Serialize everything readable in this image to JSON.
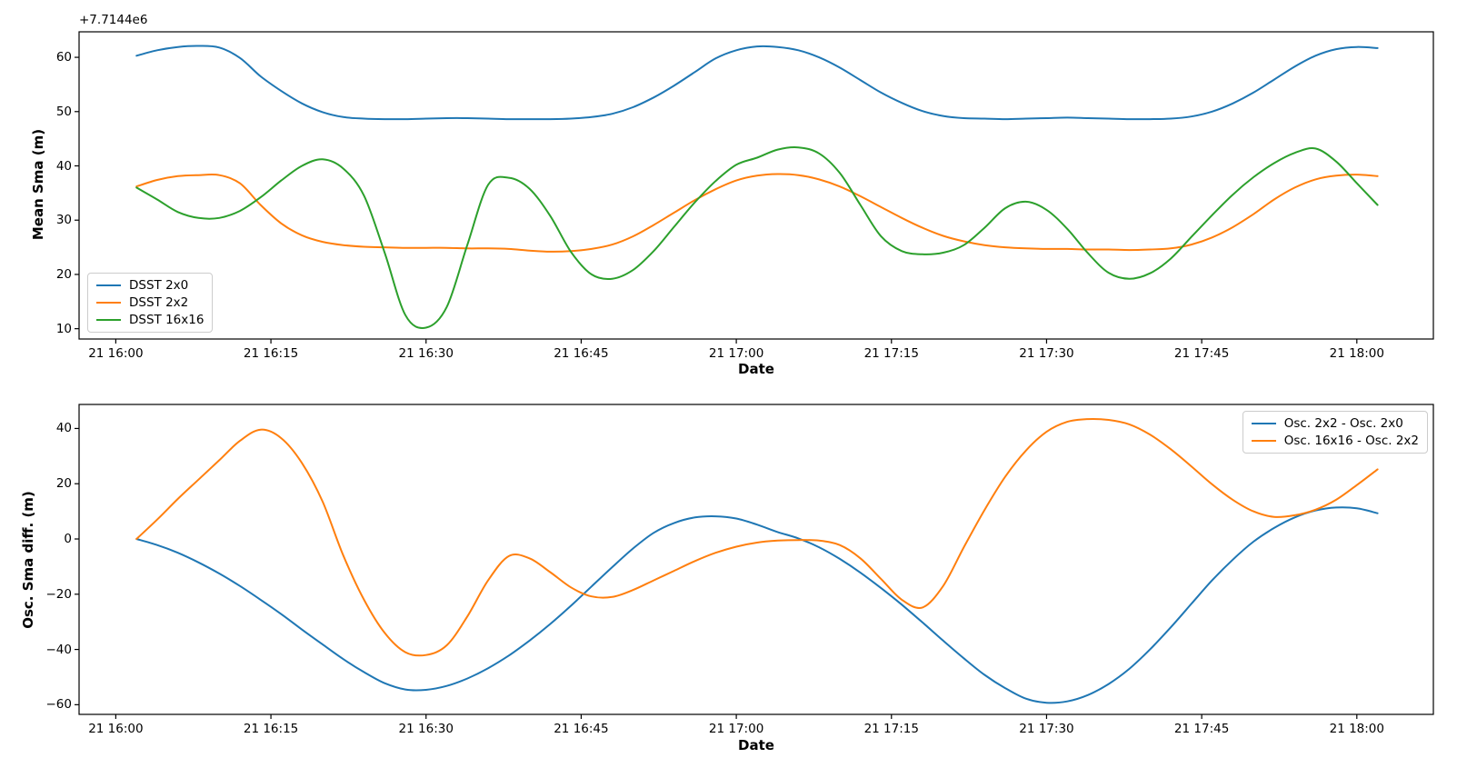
{
  "figure": {
    "background": "#ffffff",
    "text_color": "#000000"
  },
  "chart_data": [
    {
      "type": "line",
      "title": "",
      "xlabel": "Date",
      "ylabel": "Mean Sma (m)",
      "y_offset_text": "+7.7144e6",
      "legend_position": "lower left",
      "grid": false,
      "x_tick_labels": [
        "21 16:00",
        "21 16:15",
        "21 16:30",
        "21 16:45",
        "21 17:00",
        "21 17:15",
        "21 17:30",
        "21 17:45",
        "21 18:00"
      ],
      "x_tick_minutes": [
        0,
        15,
        30,
        45,
        60,
        75,
        90,
        105,
        120
      ],
      "xlim_minutes": [
        -3.55,
        127.4
      ],
      "ylim": [
        8.1,
        64.7
      ],
      "y_ticks": [
        10,
        20,
        30,
        40,
        50,
        60
      ],
      "y_tick_labels": [
        "10",
        "20",
        "30",
        "40",
        "50",
        "60"
      ],
      "x_start_min": 2,
      "x_step_min": 2,
      "series": [
        {
          "name": "DSST 2x0",
          "color": "#1f77b4",
          "values": [
            60.3,
            61.3,
            61.9,
            62.1,
            61.8,
            59.9,
            56.5,
            53.8,
            51.5,
            49.9,
            49.0,
            48.7,
            48.6,
            48.6,
            48.7,
            48.8,
            48.8,
            48.7,
            48.6,
            48.6,
            48.6,
            48.7,
            49.0,
            49.6,
            50.8,
            52.6,
            54.8,
            57.3,
            59.8,
            61.3,
            62.0,
            61.9,
            61.3,
            60.0,
            58.1,
            55.8,
            53.5,
            51.6,
            50.1,
            49.2,
            48.8,
            48.7,
            48.6,
            48.7,
            48.8,
            48.9,
            48.8,
            48.7,
            48.6,
            48.6,
            48.7,
            49.1,
            50.0,
            51.5,
            53.5,
            55.9,
            58.3,
            60.3,
            61.5,
            61.9,
            61.7
          ]
        },
        {
          "name": "DSST 2x2",
          "color": "#ff7f0e",
          "values": [
            36.2,
            37.4,
            38.1,
            38.3,
            38.3,
            36.8,
            32.8,
            29.4,
            27.2,
            26.0,
            25.4,
            25.1,
            25.0,
            24.9,
            24.9,
            24.9,
            24.8,
            24.8,
            24.7,
            24.4,
            24.2,
            24.3,
            24.7,
            25.5,
            27.0,
            29.1,
            31.4,
            33.7,
            35.7,
            37.3,
            38.2,
            38.5,
            38.3,
            37.5,
            36.2,
            34.4,
            32.4,
            30.4,
            28.6,
            27.1,
            26.1,
            25.4,
            25.0,
            24.8,
            24.7,
            24.7,
            24.6,
            24.6,
            24.5,
            24.6,
            24.8,
            25.5,
            26.8,
            28.7,
            31.1,
            33.8,
            36.0,
            37.5,
            38.2,
            38.4,
            38.1
          ]
        },
        {
          "name": "DSST 16x16",
          "color": "#2ca02c",
          "values": [
            36.0,
            33.8,
            31.5,
            30.4,
            30.4,
            31.7,
            34.2,
            37.3,
            40.0,
            41.2,
            39.5,
            34.5,
            24.0,
            12.5,
            10.2,
            14.0,
            25.5,
            36.5,
            37.8,
            35.8,
            30.8,
            24.2,
            20.0,
            19.2,
            20.8,
            24.3,
            28.8,
            33.3,
            37.2,
            40.2,
            41.5,
            43.0,
            43.4,
            42.3,
            38.7,
            32.8,
            27.0,
            24.3,
            23.7,
            24.0,
            25.4,
            28.6,
            32.2,
            33.4,
            31.9,
            28.4,
            23.9,
            20.3,
            19.2,
            20.2,
            22.9,
            26.9,
            30.9,
            34.7,
            37.9,
            40.5,
            42.4,
            43.2,
            40.8,
            36.8,
            32.8
          ]
        }
      ]
    },
    {
      "type": "line",
      "title": "",
      "xlabel": "Date",
      "ylabel": "Osc. Sma diff. (m)",
      "legend_position": "upper right",
      "grid": false,
      "x_tick_labels": [
        "21 16:00",
        "21 16:15",
        "21 16:30",
        "21 16:45",
        "21 17:00",
        "21 17:15",
        "21 17:30",
        "21 17:45",
        "21 18:00"
      ],
      "x_tick_minutes": [
        0,
        15,
        30,
        45,
        60,
        75,
        90,
        105,
        120
      ],
      "xlim_minutes": [
        -3.55,
        127.4
      ],
      "ylim": [
        -63.5,
        48.7
      ],
      "y_ticks": [
        -60,
        -40,
        -20,
        0,
        20,
        40
      ],
      "y_tick_labels": [
        "−60",
        "−40",
        "−20",
        "0",
        "20",
        "40"
      ],
      "x_start_min": 2,
      "x_step_min": 2,
      "series": [
        {
          "name": "Osc. 2x2 - Osc. 2x0",
          "color": "#1f77b4",
          "values": [
            0.0,
            -2.2,
            -5.0,
            -8.5,
            -12.5,
            -17.0,
            -22.0,
            -27.2,
            -32.8,
            -38.2,
            -43.5,
            -48.2,
            -52.2,
            -54.5,
            -54.6,
            -53.2,
            -50.5,
            -46.8,
            -42.2,
            -36.8,
            -30.8,
            -24.2,
            -17.2,
            -10.2,
            -3.5,
            2.2,
            5.8,
            7.8,
            8.2,
            7.4,
            5.2,
            2.5,
            0.2,
            -3.0,
            -7.2,
            -12.2,
            -17.8,
            -23.8,
            -30.2,
            -36.8,
            -43.2,
            -49.2,
            -54.0,
            -57.8,
            -59.3,
            -58.8,
            -56.5,
            -52.5,
            -47.0,
            -40.0,
            -32.0,
            -23.5,
            -15.0,
            -7.5,
            -1.0,
            4.0,
            7.8,
            10.3,
            11.4,
            11.1,
            9.3
          ]
        },
        {
          "name": "Osc. 16x16 - Osc. 2x2",
          "color": "#ff7f0e",
          "values": [
            0.0,
            7.0,
            14.5,
            21.5,
            28.5,
            35.5,
            39.6,
            36.5,
            27.5,
            13.5,
            -6.0,
            -22.0,
            -34.0,
            -41.0,
            -42.0,
            -38.5,
            -28.0,
            -15.0,
            -6.2,
            -7.0,
            -12.0,
            -17.5,
            -20.8,
            -21.0,
            -18.5,
            -15.0,
            -11.5,
            -8.0,
            -5.0,
            -2.8,
            -1.3,
            -0.6,
            -0.4,
            -0.6,
            -2.2,
            -7.0,
            -14.5,
            -22.0,
            -24.8,
            -17.0,
            -3.0,
            10.5,
            22.5,
            32.0,
            38.8,
            42.4,
            43.4,
            43.1,
            41.5,
            37.8,
            32.5,
            26.3,
            19.8,
            14.2,
            10.0,
            8.0,
            8.6,
            10.6,
            14.2,
            19.5,
            25.2
          ]
        }
      ]
    }
  ]
}
